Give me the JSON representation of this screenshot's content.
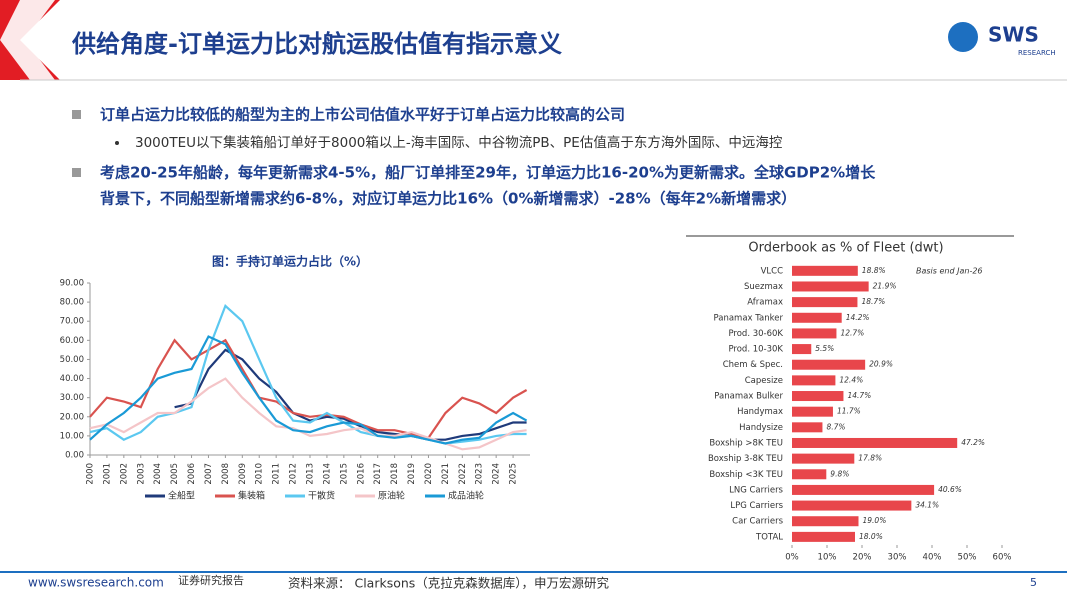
{
  "header": {
    "title": "供给角度-订单运力比对航运股估值有指示意义",
    "logo": "SWS",
    "logo_sub": "RESEARCH"
  },
  "bullets": [
    "订单占运力比较低的船型为主的上市公司估值水平好于订单占运力比较高的公司",
    "3000TEU以下集装箱船订单好于8000箱以上-海丰国际、中谷物流PB、PE估值高于东方海外国际、中远海控",
    "考虑20-25年船龄，每年更新需求4-5%，船厂订单排至29年，订单运力比16-20%为更新需求。全球GDP2%增长",
    "背景下，不同船型新增需求约6-8%，对应订单运力比16%（0%新增需求）-28%（每年2%新增需求）"
  ],
  "chart_data": [
    {
      "type": "line",
      "title": "图：手持订单运力占比（%）",
      "x": [
        2000,
        2001,
        2002,
        2003,
        2004,
        2005,
        2006,
        2007,
        2008,
        2009,
        2010,
        2011,
        2012,
        2013,
        2014,
        2015,
        2016,
        2017,
        2018,
        2019,
        2020,
        2021,
        2022,
        2023,
        2024,
        2025,
        2025.8
      ],
      "xlim": [
        2000,
        2026
      ],
      "xticks": [
        2000,
        2001,
        2002,
        2003,
        2004,
        2005,
        2006,
        2007,
        2008,
        2009,
        2010,
        2011,
        2012,
        2013,
        2014,
        2015,
        2016,
        2017,
        2018,
        2019,
        2020,
        2021,
        2022,
        2023,
        2024,
        2025
      ],
      "ylim": [
        0,
        90
      ],
      "yticks": [
        {
          "value": 0,
          "label": "0.00"
        },
        {
          "value": 10,
          "label": "10.00"
        },
        {
          "value": 20,
          "label": "20.00"
        },
        {
          "value": 30,
          "label": "30.00"
        },
        {
          "value": 40,
          "label": "40.00"
        },
        {
          "value": 50,
          "label": "50.00"
        },
        {
          "value": 60,
          "label": "60.00"
        },
        {
          "value": 70,
          "label": "70.00"
        },
        {
          "value": 80,
          "label": "80.00"
        },
        {
          "value": 90,
          "label": "90.00"
        }
      ],
      "series": [
        {
          "name": "全船型",
          "color": "#1f3a7a",
          "values": [
            null,
            null,
            null,
            null,
            null,
            25,
            27,
            45,
            55,
            50,
            40,
            33,
            22,
            18,
            20,
            19,
            15,
            12,
            11,
            10,
            8,
            8,
            10,
            11,
            14,
            17,
            17
          ]
        },
        {
          "name": "集装箱",
          "color": "#d9534f",
          "values": [
            20,
            30,
            28,
            25,
            45,
            60,
            50,
            55,
            60,
            45,
            30,
            28,
            22,
            20,
            21,
            20,
            16,
            13,
            13,
            11,
            9,
            22,
            30,
            27,
            22,
            30,
            34
          ]
        },
        {
          "name": "干散货",
          "color": "#5bc8f0",
          "values": [
            12,
            14,
            8,
            12,
            20,
            22,
            25,
            55,
            78,
            70,
            50,
            30,
            18,
            17,
            22,
            17,
            12,
            10,
            10,
            10,
            8,
            6,
            7,
            8,
            10,
            11,
            11
          ]
        },
        {
          "name": "原油轮",
          "color": "#f4c5c8",
          "values": [
            14,
            16,
            12,
            17,
            22,
            22,
            28,
            35,
            40,
            30,
            22,
            15,
            14,
            10,
            11,
            13,
            14,
            10,
            10,
            12,
            9,
            6,
            3,
            4,
            8,
            12,
            13
          ]
        },
        {
          "name": "成品油轮",
          "color": "#1a9ad6",
          "values": [
            8,
            16,
            22,
            30,
            40,
            43,
            45,
            62,
            58,
            43,
            30,
            18,
            13,
            12,
            15,
            17,
            16,
            10,
            9,
            10,
            8,
            6,
            8,
            9,
            17,
            22,
            18
          ]
        }
      ]
    },
    {
      "type": "hbar",
      "title": "Orderbook as % of Fleet (dwt)",
      "annotation": "Basis end Jan-26",
      "color": "#e8464b",
      "categories": [
        "VLCC",
        "Suezmax",
        "Aframax",
        "Panamax Tanker",
        "Prod. 30-60K",
        "Prod. 10-30K",
        "Chem & Spec.",
        "Capesize",
        "Panamax Bulker",
        "Handymax",
        "Handysize",
        "Boxship >8K TEU",
        "Boxship 3-8K TEU",
        "Boxship <3K TEU",
        "LNG Carriers",
        "LPG Carriers",
        "Car Carriers",
        "TOTAL"
      ],
      "values": [
        18.8,
        21.9,
        18.7,
        14.2,
        12.7,
        5.5,
        20.9,
        12.4,
        14.7,
        11.7,
        8.7,
        47.2,
        17.8,
        9.8,
        40.6,
        34.1,
        19.0,
        18.0
      ],
      "value_labels": [
        "18.8%",
        "21.9%",
        "18.7%",
        "14.2%",
        "12.7%",
        "5.5%",
        "20.9%",
        "12.4%",
        "14.7%",
        "11.7%",
        "8.7%",
        "47.2%",
        "17.8%",
        "9.8%",
        "40.6%",
        "34.1%",
        "19.0%",
        "18.0%"
      ],
      "xlim": [
        0,
        60
      ],
      "xticks": [
        {
          "value": 0,
          "label": "0%"
        },
        {
          "value": 10,
          "label": "10%"
        },
        {
          "value": 20,
          "label": "20%"
        },
        {
          "value": 30,
          "label": "30%"
        },
        {
          "value": 40,
          "label": "40%"
        },
        {
          "value": 50,
          "label": "50%"
        },
        {
          "value": 60,
          "label": "60%"
        }
      ]
    }
  ],
  "footer": {
    "url": "www.swsresearch.com",
    "label": "证券研究报告",
    "source": "资料来源： Clarksons（克拉克森数据库），申万宏源研究",
    "page": "5"
  }
}
